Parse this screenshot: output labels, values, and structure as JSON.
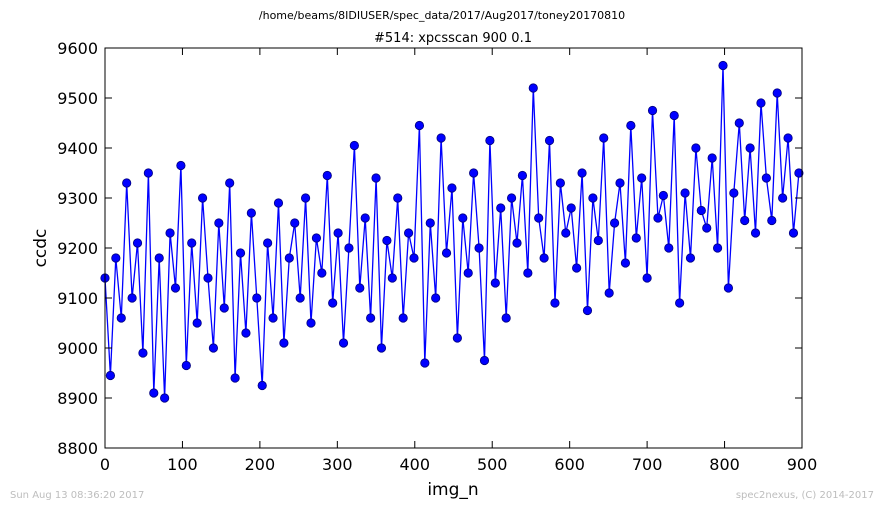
{
  "figure": {
    "suptitle": "/home/beams/8IDIUSER/spec_data/2017/Aug2017/toney20170810",
    "footer_left": "Sun Aug 13 08:36:20 2017",
    "footer_right": "spec2nexus, (C) 2014-2017"
  },
  "chart_data": {
    "type": "line",
    "title": "#514: xpcsscan 900 0.1",
    "xlabel": "img_n",
    "ylabel": "ccdc",
    "xlim": [
      0,
      900
    ],
    "ylim": [
      8800,
      9600
    ],
    "xticks": [
      "0",
      "100",
      "200",
      "300",
      "400",
      "500",
      "600",
      "700",
      "800",
      "900"
    ],
    "yticks": [
      "8800",
      "8900",
      "9000",
      "9100",
      "9200",
      "9300",
      "9400",
      "9500",
      "9600"
    ],
    "grid": false,
    "legend": "none",
    "series": [
      {
        "marker": "circle",
        "color": "#0000ff",
        "edge_color": "#000080",
        "x": [
          0,
          7,
          14,
          21,
          28,
          35,
          42,
          49,
          56,
          63,
          70,
          77,
          84,
          91,
          98,
          105,
          112,
          119,
          126,
          133,
          140,
          147,
          154,
          161,
          168,
          175,
          182,
          189,
          196,
          203,
          210,
          217,
          224,
          231,
          238,
          245,
          252,
          259,
          266,
          273,
          280,
          287,
          294,
          301,
          308,
          315,
          322,
          329,
          336,
          343,
          350,
          357,
          364,
          371,
          378,
          385,
          392,
          399,
          406,
          413,
          420,
          427,
          434,
          441,
          448,
          455,
          462,
          469,
          476,
          483,
          490,
          497,
          504,
          511,
          518,
          525,
          532,
          539,
          546,
          553,
          560,
          567,
          574,
          581,
          588,
          595,
          602,
          609,
          616,
          623,
          630,
          637,
          644,
          651,
          658,
          665,
          672,
          679,
          686,
          693,
          700,
          707,
          714,
          721,
          728,
          735,
          742,
          749,
          756,
          763,
          770,
          777,
          784,
          791,
          798,
          805,
          812,
          819,
          826,
          833,
          840,
          847,
          854,
          861,
          868,
          875,
          882,
          889,
          896
        ],
        "values": [
          9140,
          8945,
          9180,
          9060,
          9330,
          9100,
          9210,
          8990,
          9350,
          8910,
          9180,
          8900,
          9230,
          9120,
          9365,
          8965,
          9210,
          9050,
          9300,
          9140,
          9000,
          9250,
          9080,
          9330,
          8940,
          9190,
          9030,
          9270,
          9100,
          8925,
          9210,
          9060,
          9290,
          9010,
          9180,
          9250,
          9100,
          9300,
          9050,
          9220,
          9150,
          9345,
          9090,
          9230,
          9010,
          9200,
          9405,
          9120,
          9260,
          9060,
          9340,
          9000,
          9215,
          9140,
          9300,
          9060,
          9230,
          9180,
          9445,
          8970,
          9250,
          9100,
          9420,
          9190,
          9320,
          9020,
          9260,
          9150,
          9350,
          9200,
          8975,
          9415,
          9130,
          9280,
          9060,
          9300,
          9210,
          9345,
          9150,
          9520,
          9260,
          9180,
          9415,
          9090,
          9330,
          9230,
          9280,
          9160,
          9350,
          9075,
          9300,
          9215,
          9420,
          9110,
          9250,
          9330,
          9170,
          9445,
          9220,
          9340,
          9140,
          9475,
          9260,
          9305,
          9200,
          9465,
          9090,
          9310,
          9180,
          9400,
          9275,
          9240,
          9380,
          9200,
          9565,
          9120,
          9310,
          9450,
          9255,
          9400,
          9230,
          9490,
          9340,
          9255,
          9510,
          9300,
          9420,
          9230,
          9350
        ]
      }
    ]
  }
}
